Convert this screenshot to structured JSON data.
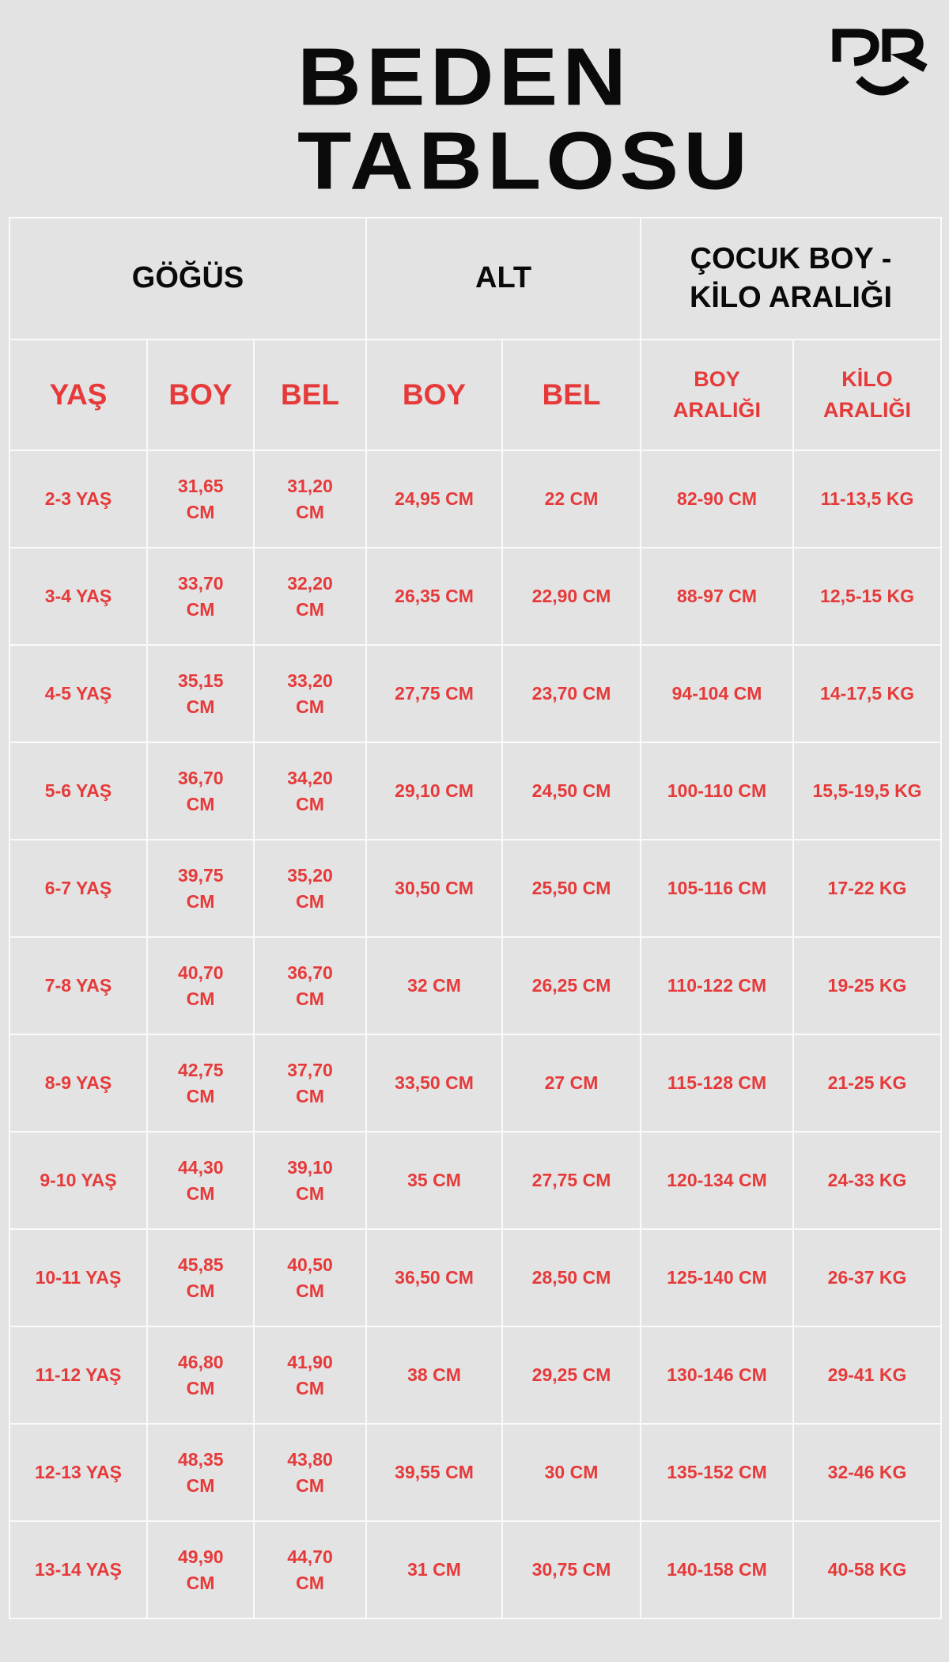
{
  "title": {
    "line1": "BEDEN",
    "line2": "TABLOSU"
  },
  "logo": {
    "text": "PR",
    "icon": "pr-smile-logo"
  },
  "colors": {
    "background": "#e3e3e3",
    "accent": "#e63a3a",
    "text": "#0a0a0a",
    "grid": "#fafafa"
  },
  "table": {
    "groups": [
      "GÖĞÜS",
      "ALT",
      "ÇOCUK BOY - KİLO ARALIĞI"
    ],
    "columns": [
      "YAŞ",
      "BOY",
      "BEL",
      "BOY",
      "BEL",
      "BOY ARALIĞI",
      "KİLO ARALIĞI"
    ],
    "rows": [
      [
        "2-3 YAŞ",
        "31,65 CM",
        "31,20 CM",
        "24,95 CM",
        "22 CM",
        "82-90 CM",
        "11-13,5 KG"
      ],
      [
        "3-4 YAŞ",
        "33,70 CM",
        "32,20 CM",
        "26,35 CM",
        "22,90 CM",
        "88-97 CM",
        "12,5-15 KG"
      ],
      [
        "4-5 YAŞ",
        "35,15 CM",
        "33,20 CM",
        "27,75 CM",
        "23,70 CM",
        "94-104 CM",
        "14-17,5 KG"
      ],
      [
        "5-6 YAŞ",
        "36,70 CM",
        "34,20 CM",
        "29,10 CM",
        "24,50 CM",
        "100-110 CM",
        "15,5-19,5 KG"
      ],
      [
        "6-7 YAŞ",
        "39,75 CM",
        "35,20 CM",
        "30,50 CM",
        "25,50 CM",
        "105-116 CM",
        "17-22 KG"
      ],
      [
        "7-8 YAŞ",
        "40,70 CM",
        "36,70 CM",
        "32 CM",
        "26,25 CM",
        "110-122 CM",
        "19-25 KG"
      ],
      [
        "8-9 YAŞ",
        "42,75 CM",
        "37,70 CM",
        "33,50 CM",
        "27 CM",
        "115-128 CM",
        "21-25 KG"
      ],
      [
        "9-10 YAŞ",
        "44,30 CM",
        "39,10 CM",
        "35 CM",
        "27,75 CM",
        "120-134 CM",
        "24-33 KG"
      ],
      [
        "10-11 YAŞ",
        "45,85 CM",
        "40,50 CM",
        "36,50 CM",
        "28,50 CM",
        "125-140 CM",
        "26-37 KG"
      ],
      [
        "11-12 YAŞ",
        "46,80 CM",
        "41,90 CM",
        "38 CM",
        "29,25 CM",
        "130-146 CM",
        "29-41 KG"
      ],
      [
        "12-13 YAŞ",
        "48,35 CM",
        "43,80 CM",
        "39,55 CM",
        "30 CM",
        "135-152 CM",
        "32-46 KG"
      ],
      [
        "13-14 YAŞ",
        "49,90 CM",
        "44,70 CM",
        "31 CM",
        "30,75 CM",
        "140-158 CM",
        "40-58 KG"
      ]
    ]
  }
}
